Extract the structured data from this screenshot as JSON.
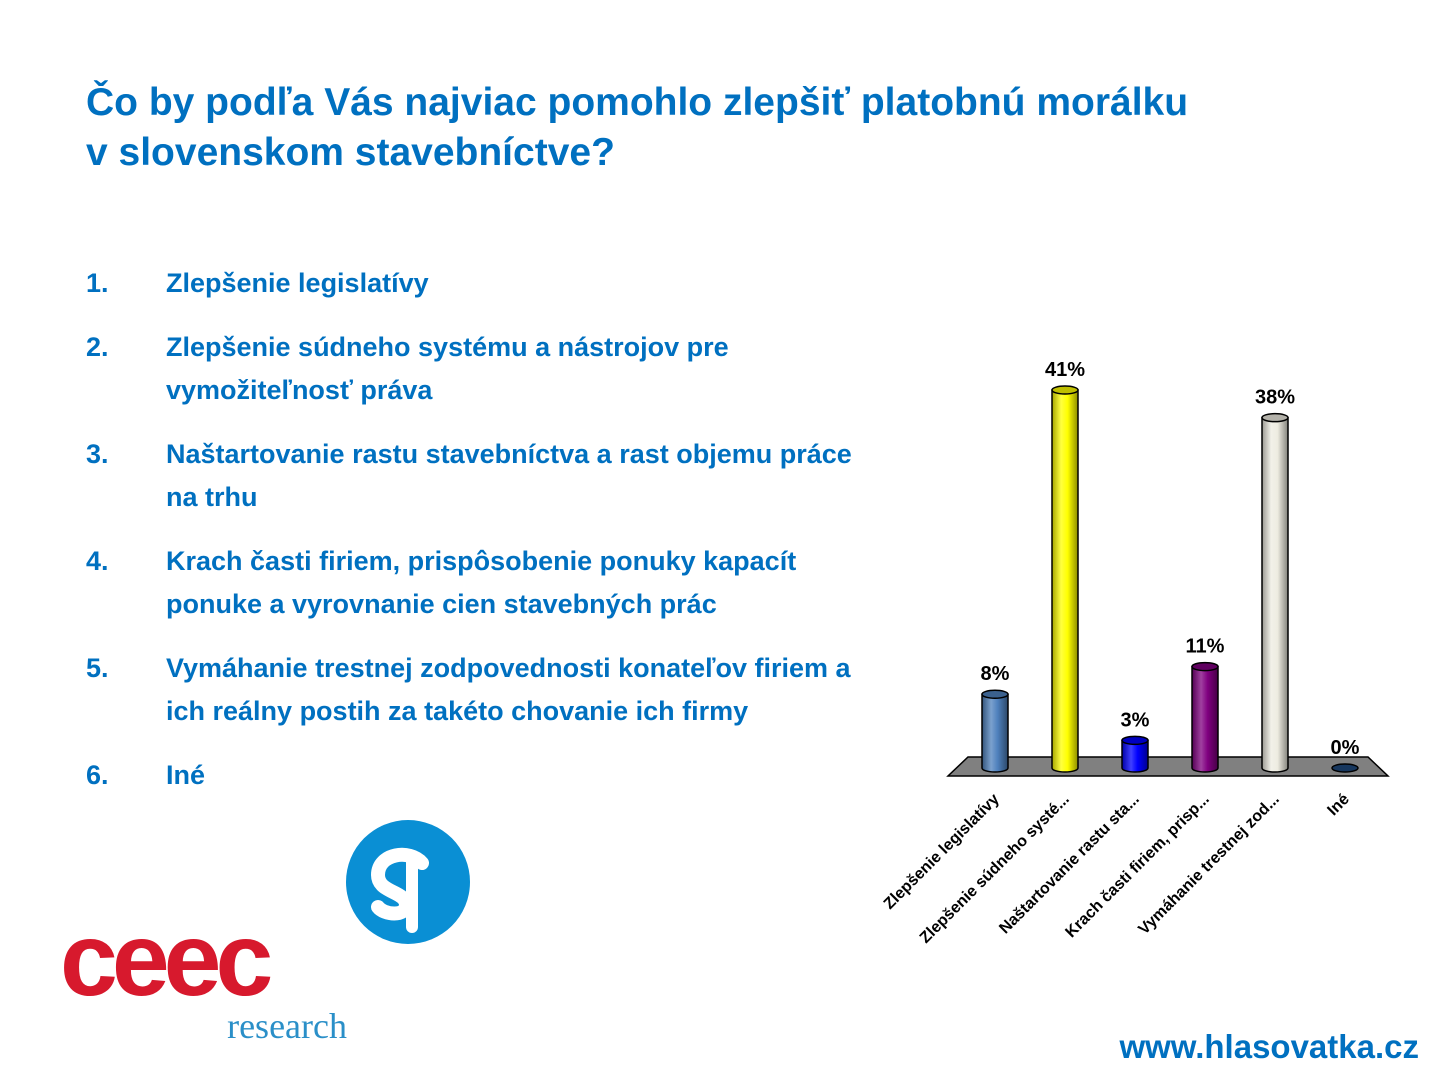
{
  "title": {
    "line1": "Čo by podľa Vás najviac pomohlo zlepšiť platobnú morálku",
    "line2": "v slovenskom stavebníctve?"
  },
  "list": [
    {
      "num": "1.",
      "text": "Zlepšenie legislatívy"
    },
    {
      "num": "2.",
      "text": "Zlepšenie súdneho systému a nástrojov pre vymožiteľnosť práva"
    },
    {
      "num": "3.",
      "text": "Naštartovanie rastu stavebníctva a rast objemu práce na trhu"
    },
    {
      "num": "4.",
      "text": "Krach časti firiem, prispôsobenie ponuky kapacít ponuke a vyrovnanie cien stavebných prác"
    },
    {
      "num": "5.",
      "text": "Vymáhanie trestnej zodpovednosti konateľov firiem a ich reálny postih za takéto chovanie ich firmy"
    },
    {
      "num": "6.",
      "text": "Iné"
    }
  ],
  "chart_data": {
    "type": "bar",
    "categories": [
      "Zlepšenie legislatívy",
      "Zlepšenie súdneho systé...",
      "Naštartovanie rastu sta...",
      "Krach časti firiem, prisp...",
      "Vymáhanie trestnej zod...",
      "Iné"
    ],
    "values": [
      8,
      41,
      3,
      11,
      38,
      0
    ],
    "data_labels": [
      "8%",
      "41%",
      "3%",
      "11%",
      "38%",
      "0%"
    ],
    "colors": [
      "#4f81bd",
      "#ffff00",
      "#0000ff",
      "#800080",
      "#eeece1",
      "#1f497d"
    ],
    "floor_color": "#808080",
    "ylim": [
      0,
      41
    ],
    "style": "3d-cylinder",
    "grid": false,
    "legend": "none"
  },
  "logo": {
    "text": "ceec",
    "subtext": "research",
    "mark_color": "#0a8fd4",
    "text_color": "#d7192d",
    "subtext_color": "#2a8fc8"
  },
  "footer": {
    "url": "www.hlasovatka.cz"
  }
}
